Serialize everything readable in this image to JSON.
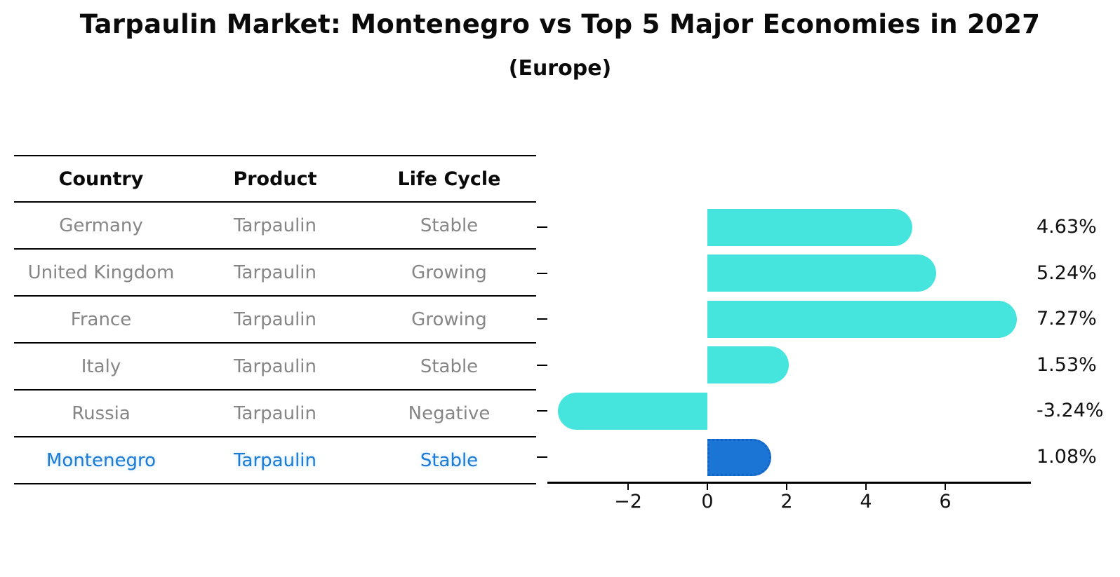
{
  "title": "Tarpaulin Market: Montenegro vs Top 5 Major Economies in 2027",
  "subtitle": "(Europe)",
  "table": {
    "headers": [
      "Country",
      "Product",
      "Life Cycle"
    ],
    "rows": [
      {
        "country": "Germany",
        "product": "Tarpaulin",
        "life_cycle": "Stable",
        "highlight": false
      },
      {
        "country": "United Kingdom",
        "product": "Tarpaulin",
        "life_cycle": "Growing",
        "highlight": false
      },
      {
        "country": "France",
        "product": "Tarpaulin",
        "life_cycle": "Growing",
        "highlight": false
      },
      {
        "country": "Italy",
        "product": "Tarpaulin",
        "life_cycle": "Stable",
        "highlight": false
      },
      {
        "country": "Russia",
        "product": "Tarpaulin",
        "life_cycle": "Negative",
        "highlight": false
      },
      {
        "country": "Montenegro",
        "product": "Tarpaulin",
        "life_cycle": "Stable",
        "highlight": true
      }
    ]
  },
  "chart_data": {
    "type": "bar",
    "orientation": "horizontal",
    "title": "Tarpaulin Market: Montenegro vs Top 5 Major Economies in 2027 (Europe)",
    "categories": [
      "Germany",
      "United Kingdom",
      "France",
      "Italy",
      "Russia",
      "Montenegro"
    ],
    "values": [
      4.63,
      5.24,
      7.27,
      1.53,
      -3.24,
      1.08
    ],
    "value_labels": [
      "4.63%",
      "5.24%",
      "7.27%",
      "1.53%",
      "-3.24%",
      "1.08%"
    ],
    "x_tick_values": [
      -2,
      0,
      2,
      4,
      6
    ],
    "x_tick_labels": [
      "−2",
      "0",
      "2",
      "4",
      "6"
    ],
    "xlim": [
      -4.05,
      8.2
    ],
    "grid": false,
    "legend": false,
    "highlight_index": 5,
    "bar_color": "#45E4DC",
    "highlight_bar_color": "#1B75D4",
    "highlight_text_color": "#1E7AD2",
    "axis_color": "#000000",
    "table_text_color": "#868686"
  }
}
